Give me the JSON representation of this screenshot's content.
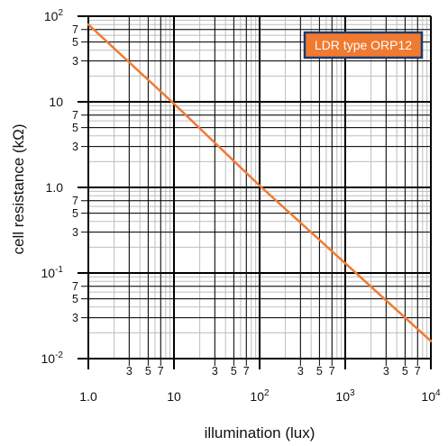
{
  "chart_data": {
    "type": "line",
    "xscale": "log",
    "yscale": "log",
    "xlim": [
      1,
      10000
    ],
    "ylim": [
      0.01,
      100
    ],
    "xlabel": "illumination (lux)",
    "ylabel": "cell resistance (kΩ)",
    "grid": true,
    "legend_position": "top-right",
    "x_major_ticks": [
      {
        "value": 1,
        "base": "1.0",
        "exp": ""
      },
      {
        "value": 10,
        "base": "10",
        "exp": ""
      },
      {
        "value": 100,
        "base": "10",
        "exp": "2"
      },
      {
        "value": 1000,
        "base": "10",
        "exp": "3"
      },
      {
        "value": 10000,
        "base": "10",
        "exp": "4"
      }
    ],
    "y_major_ticks": [
      {
        "value": 100,
        "base": "10",
        "exp": "2"
      },
      {
        "value": 10,
        "base": "10",
        "exp": ""
      },
      {
        "value": 1,
        "base": "1.0",
        "exp": ""
      },
      {
        "value": 0.1,
        "base": "10",
        "exp": "-1"
      },
      {
        "value": 0.01,
        "base": "10",
        "exp": "-2"
      }
    ],
    "minor_tick_labels": [
      "3",
      "5",
      "7"
    ],
    "series": [
      {
        "name": "LDR type ORP12",
        "color": "#f07a30",
        "x": [
          1,
          10,
          100,
          1000,
          10000
        ],
        "y": [
          80,
          9.5,
          1.05,
          0.13,
          0.016
        ]
      }
    ]
  },
  "colors": {
    "line": "#f07a30",
    "legend_fill": "#f07a30",
    "legend_border": "#1c3a6e",
    "major_grid": "#000000",
    "minor_grid": "#bdbdbd"
  }
}
